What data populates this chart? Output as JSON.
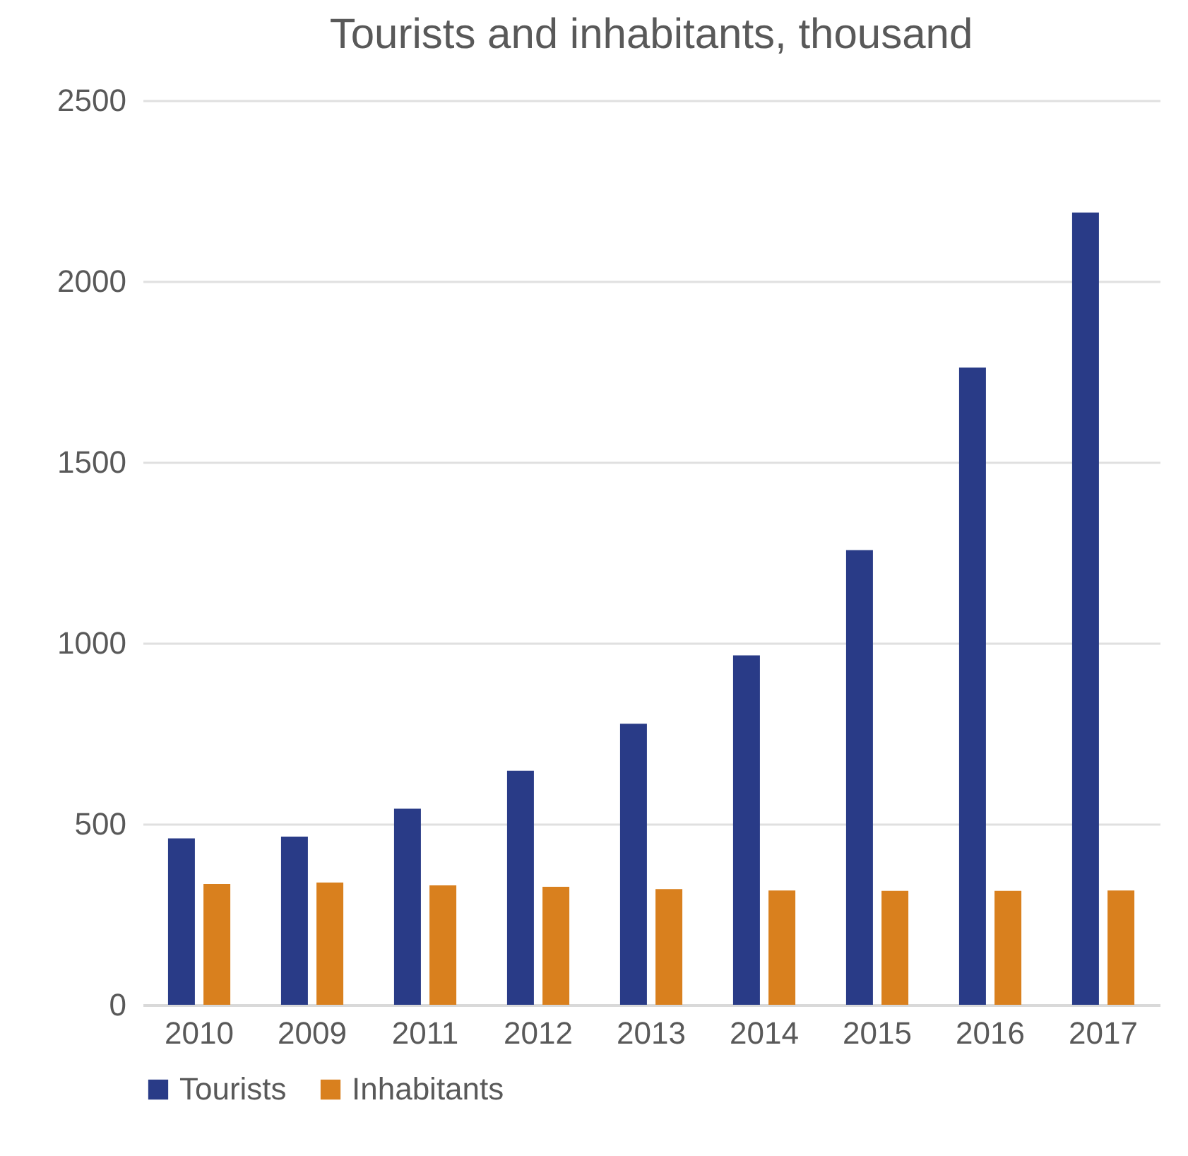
{
  "chart_data": {
    "type": "bar",
    "title": "Tourists and inhabitants, thousand",
    "categories": [
      "2010",
      "2009",
      "2011",
      "2012",
      "2013",
      "2014",
      "2015",
      "2016",
      "2017"
    ],
    "series": [
      {
        "name": "Tourists",
        "color": "#293b87",
        "values": [
          460,
          465,
          542,
          647,
          777,
          966,
          1257,
          1761,
          2190
        ]
      },
      {
        "name": "Inhabitants",
        "color": "#d9801e",
        "values": [
          334,
          338,
          330,
          326,
          320,
          316,
          315,
          315,
          316
        ]
      }
    ],
    "ylim": [
      0,
      2500
    ],
    "yticks": [
      0,
      500,
      1000,
      1500,
      2000,
      2500
    ],
    "grid": "y",
    "legend": "bottom"
  }
}
